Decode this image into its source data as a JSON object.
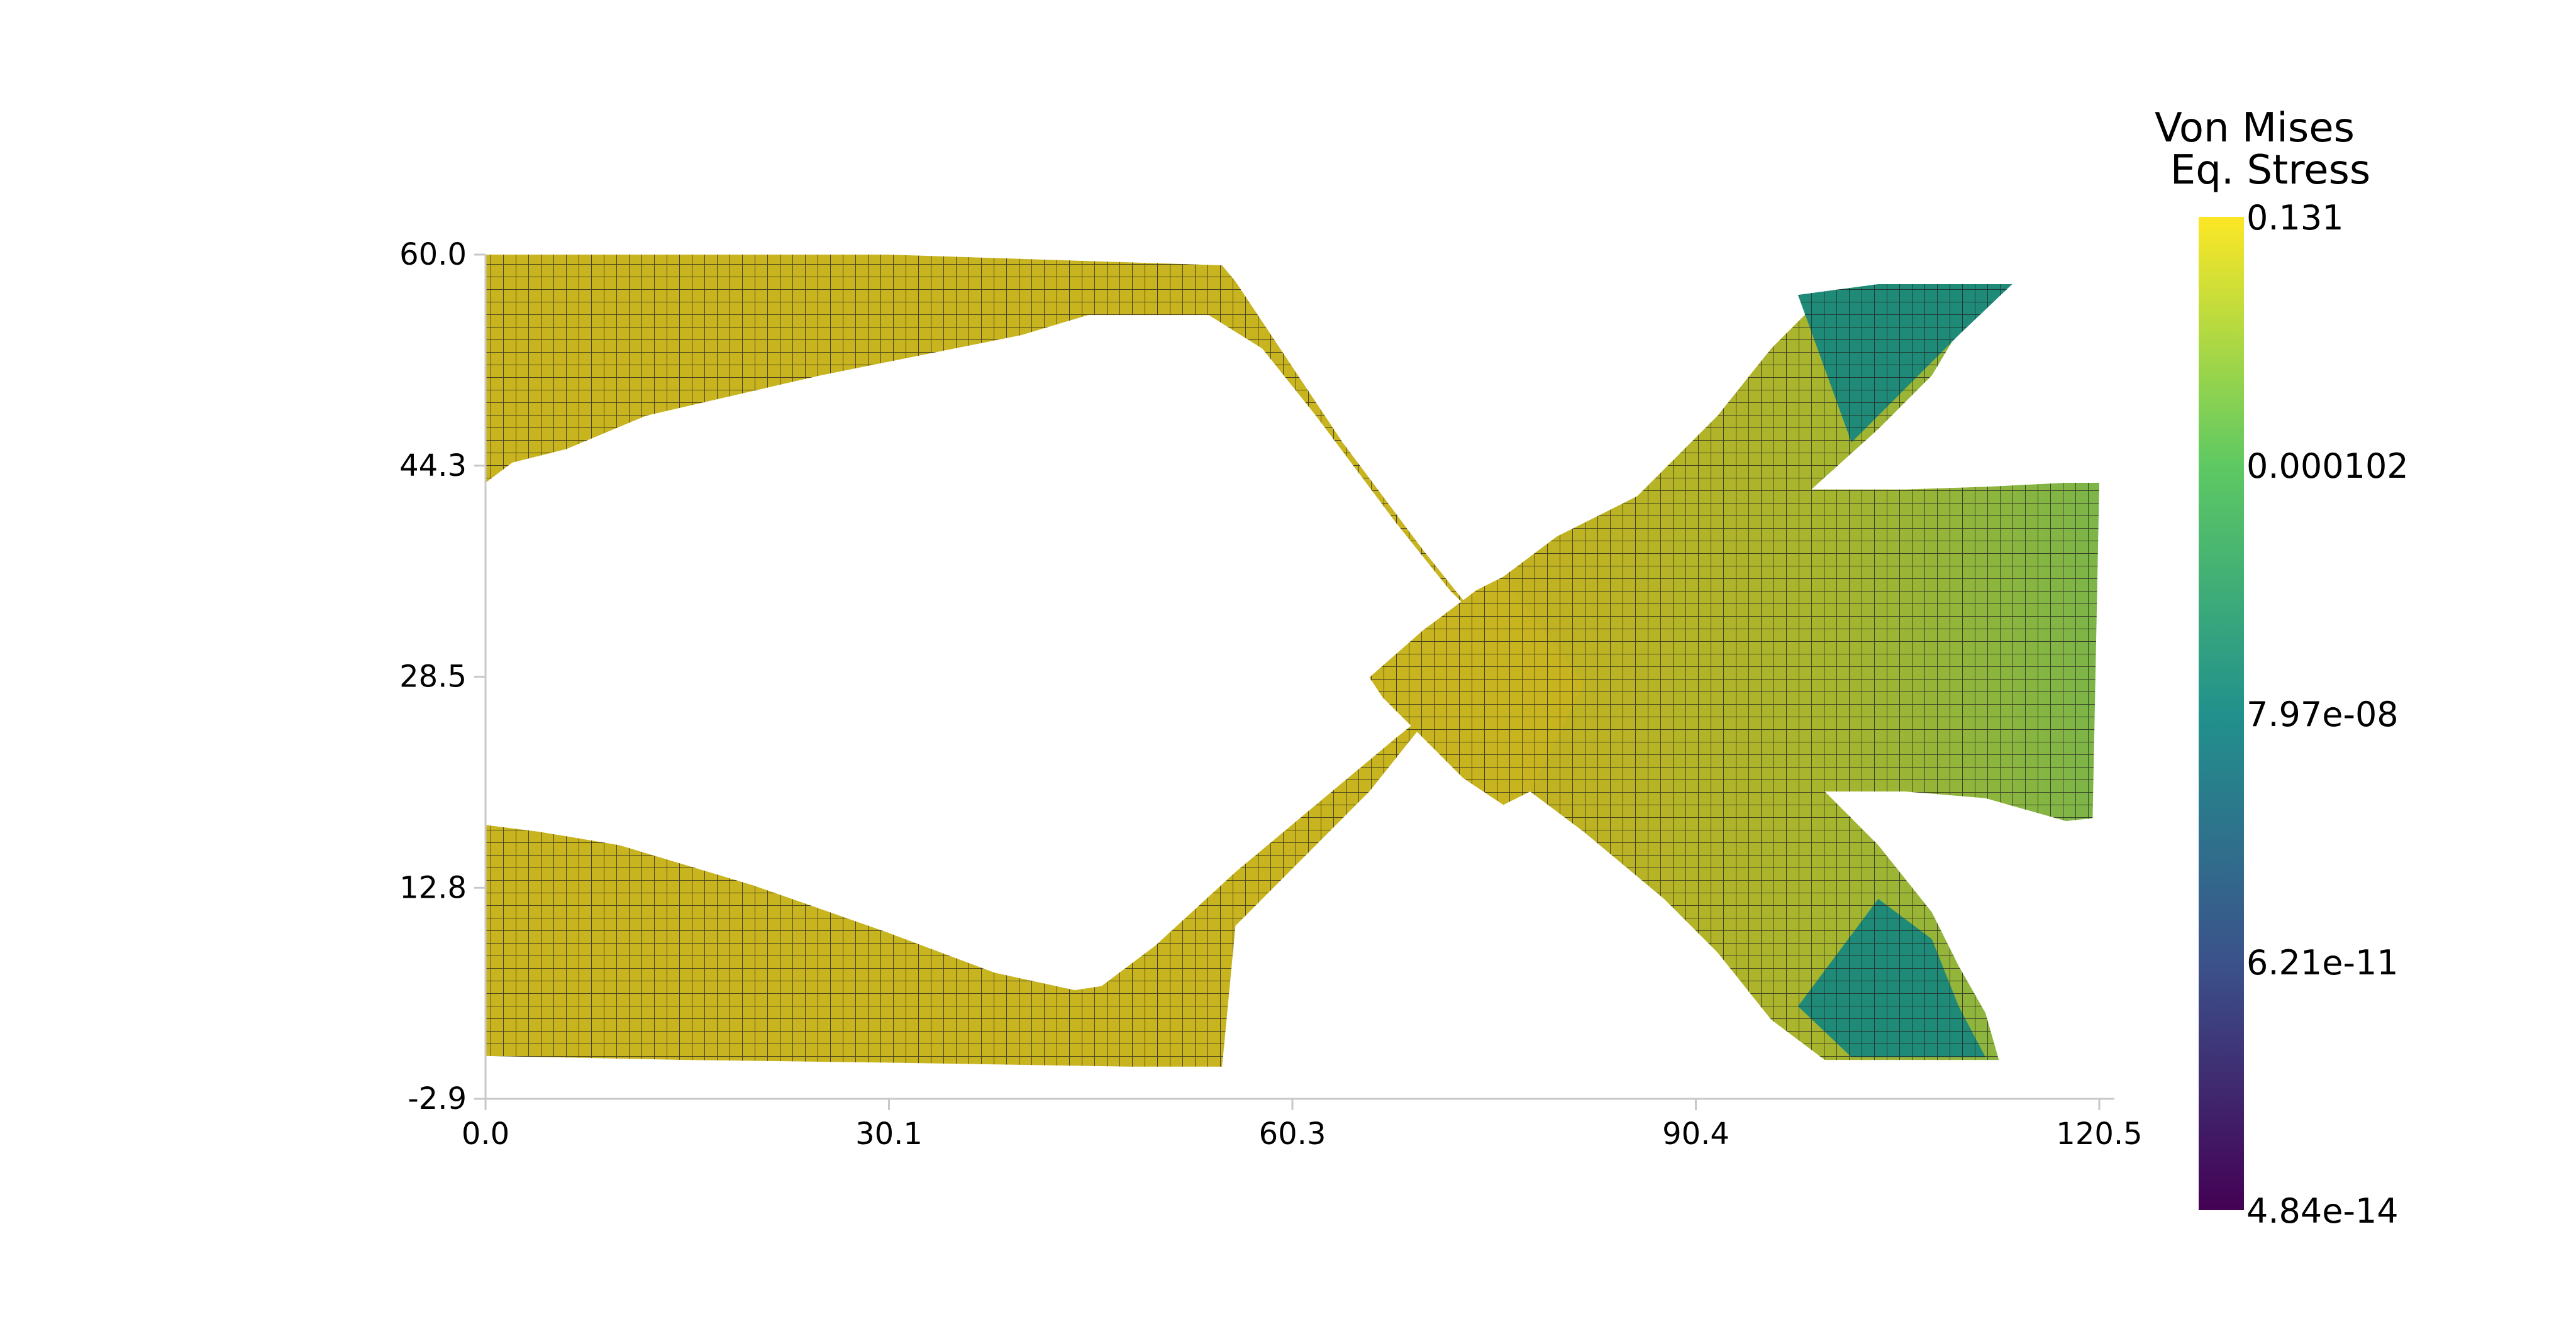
{
  "chart_data": {
    "type": "heatmap",
    "title": "",
    "xlabel": "",
    "ylabel": "",
    "xlim": [
      0.0,
      120.5
    ],
    "ylim": [
      -2.9,
      60.0
    ],
    "x_ticks": [
      "0.0",
      "30.1",
      "60.3",
      "90.4",
      "120.5"
    ],
    "y_ticks": [
      "-2.9",
      "12.8",
      "28.5",
      "44.3",
      "60.0"
    ],
    "grid": false,
    "field": "Von Mises Eq. Stress",
    "colorbar": {
      "title_line1": "Von Mises",
      "title_line2": "Eq. Stress",
      "scale": "log",
      "colormap": "viridis",
      "ticks": [
        "0.131",
        "0.000102",
        "7.97e-08",
        "6.21e-11",
        "4.84e-14"
      ],
      "tick_values": [
        0.131,
        0.000102,
        7.97e-08,
        6.21e-11,
        4.84e-14
      ],
      "colors": [
        "#fde725",
        "#5ec962",
        "#21918c",
        "#3b528b",
        "#440154"
      ]
    },
    "mesh": {
      "element_color_high": "#c8b41e",
      "element_color_mid": "#7cb548",
      "element_color_low": "#1f8a78",
      "edge_color": "#1f1f1f",
      "regions": [
        {
          "name": "upper-left-arm",
          "outline": [
            [
              0,
              60
            ],
            [
              30,
              60
            ],
            [
              55,
              59.2
            ],
            [
              56,
              58
            ],
            [
              60,
              52
            ],
            [
              64,
              46
            ],
            [
              70,
              38
            ],
            [
              74,
              33
            ],
            [
              72,
              35
            ],
            [
              68,
              40
            ],
            [
              62,
              48
            ],
            [
              58,
              53
            ],
            [
              54,
              55.5
            ],
            [
              45,
              55.5
            ],
            [
              40,
              54
            ],
            [
              25,
              51
            ],
            [
              12,
              48
            ],
            [
              6,
              45.5
            ],
            [
              2,
              44.5
            ],
            [
              0,
              43
            ]
          ],
          "stress": "high"
        },
        {
          "name": "lower-left-arm",
          "outline": [
            [
              0,
              17.5
            ],
            [
              4,
              17
            ],
            [
              10,
              16
            ],
            [
              20,
              13
            ],
            [
              30,
              9.5
            ],
            [
              38,
              6.5
            ],
            [
              44,
              5.2
            ],
            [
              46,
              5.5
            ],
            [
              50,
              8.5
            ],
            [
              56,
              14
            ],
            [
              62,
              19
            ],
            [
              68,
              24
            ],
            [
              73,
              28
            ],
            [
              75,
              29
            ],
            [
              72,
              27.5
            ],
            [
              66,
              20
            ],
            [
              60,
              14
            ],
            [
              56,
              10
            ],
            [
              55,
              -0.5
            ],
            [
              48,
              -0.5
            ],
            [
              30,
              -0.2
            ],
            [
              15,
              0
            ],
            [
              0,
              0.3
            ]
          ],
          "stress": "high"
        },
        {
          "name": "center-junction",
          "outline": [
            [
              66,
              28.5
            ],
            [
              70,
              32
            ],
            [
              74,
              35
            ],
            [
              76,
              36
            ],
            [
              78,
              34
            ],
            [
              82,
              30
            ],
            [
              84,
              26
            ],
            [
              82,
              22
            ],
            [
              78,
              20
            ],
            [
              76,
              19
            ],
            [
              73,
              21
            ],
            [
              70,
              24
            ],
            [
              67,
              27
            ]
          ],
          "stress": "high"
        },
        {
          "name": "right-block",
          "outline": [
            [
              76,
              36
            ],
            [
              80,
              39
            ],
            [
              86,
              42
            ],
            [
              92,
              48
            ],
            [
              96,
              53
            ],
            [
              100,
              57
            ],
            [
              104,
              57.8
            ],
            [
              114,
              57.8
            ],
            [
              111,
              56
            ],
            [
              108,
              51
            ],
            [
              104,
              47
            ],
            [
              99,
              42.5
            ],
            [
              106,
              42.5
            ],
            [
              112,
              42.7
            ],
            [
              118,
              43
            ],
            [
              120.5,
              43
            ],
            [
              120,
              18
            ],
            [
              118,
              17.8
            ],
            [
              112,
              19.5
            ],
            [
              106,
              20
            ],
            [
              100,
              20
            ],
            [
              104,
              16
            ],
            [
              108,
              11
            ],
            [
              110,
              7
            ],
            [
              112,
              3.5
            ],
            [
              113,
              0
            ],
            [
              100,
              0
            ],
            [
              96,
              3
            ],
            [
              92,
              8
            ],
            [
              88,
              12
            ],
            [
              82,
              17
            ],
            [
              78,
              20
            ],
            [
              80,
              24
            ],
            [
              82,
              28
            ]
          ],
          "stress": "mid"
        },
        {
          "name": "upper-right-tip",
          "outline": [
            [
              98,
              57
            ],
            [
              104,
              57.8
            ],
            [
              114,
              57.8
            ],
            [
              110,
              54
            ],
            [
              106,
              50
            ],
            [
              102,
              46
            ]
          ],
          "stress": "low"
        },
        {
          "name": "lower-right-tip",
          "outline": [
            [
              98,
              4
            ],
            [
              102,
              0.2
            ],
            [
              112,
              0.2
            ],
            [
              110,
              4
            ],
            [
              108,
              9
            ],
            [
              104,
              12
            ]
          ],
          "stress": "low"
        }
      ]
    }
  }
}
